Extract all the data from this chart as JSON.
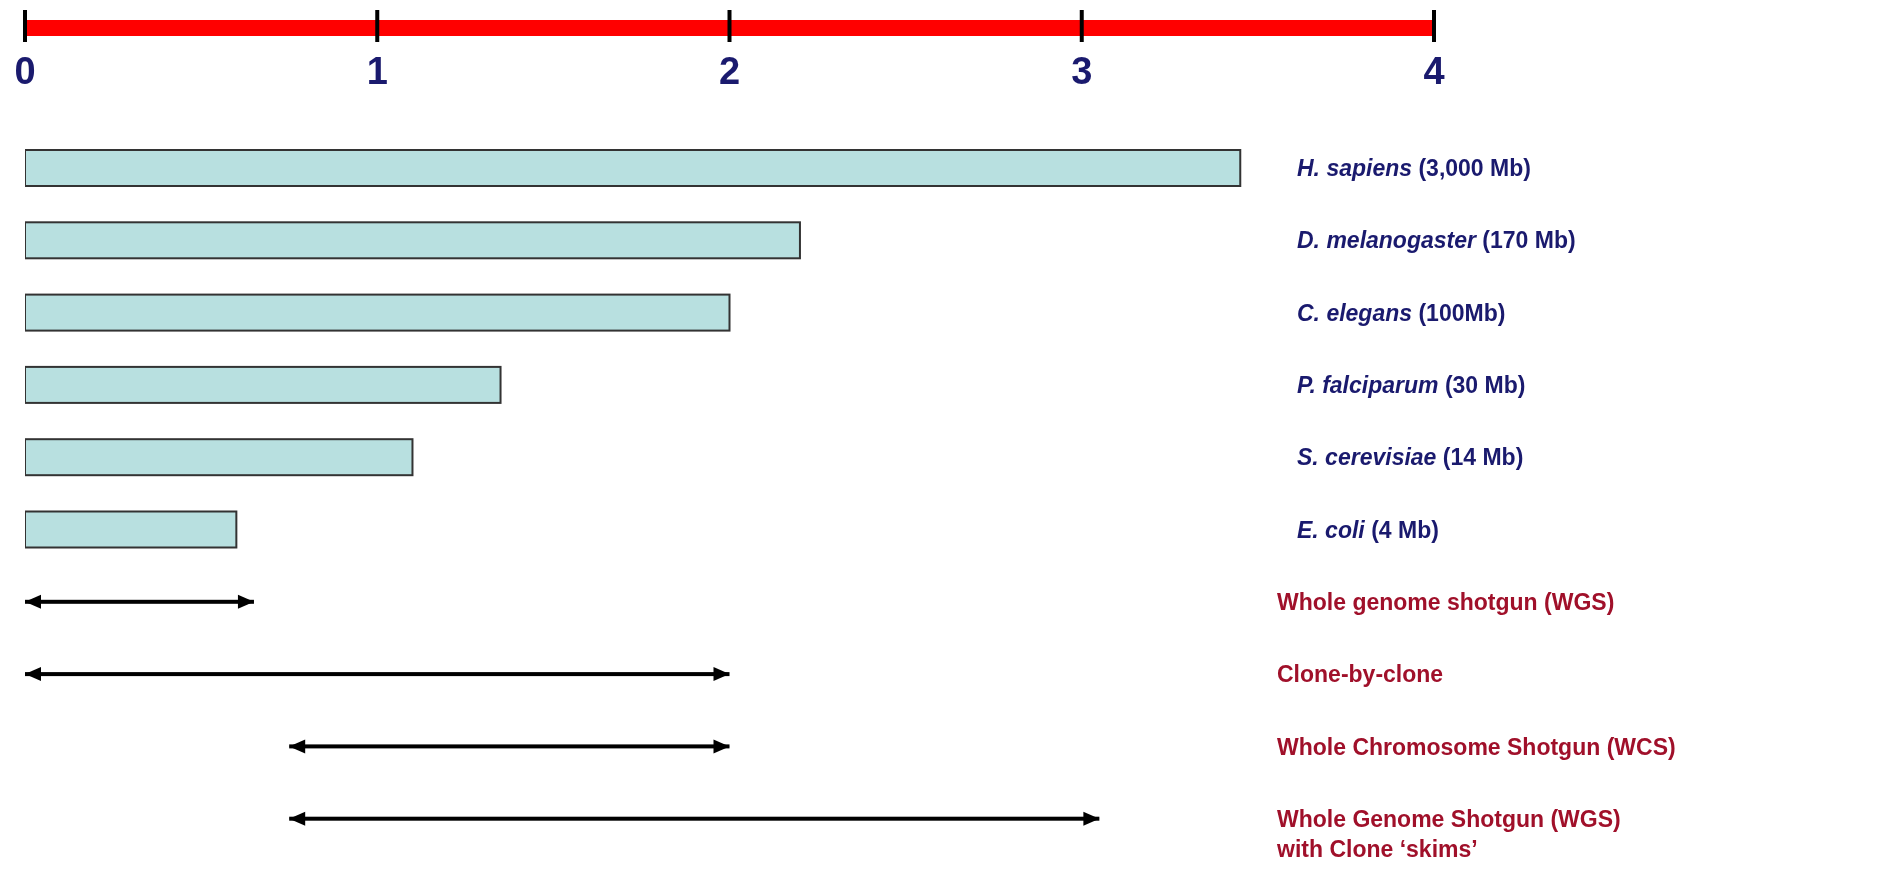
{
  "chart_data": {
    "type": "bar",
    "orientation": "horizontal",
    "categories": [
      "H. sapiens (3,000 Mb)",
      "D. melanogaster (170 Mb)",
      "C. elegans (100Mb)",
      "P. falciparum (30 Mb)",
      "S. cerevisiae (14 Mb)",
      "E. coli (4 Mb)",
      "Whole genome shotgun (WGS)",
      "Clone-by-clone",
      "Whole Chromosome Shotgun (WCS)",
      "Whole Genome Shotgun (WGS) with Clone ‘skims’"
    ],
    "series": [
      {
        "color": "#b8e0e0",
        "values": [
          3.45,
          2.2,
          2.0,
          1.35,
          1.1,
          0.6,
          null,
          null,
          null,
          null
        ]
      },
      {
        "color": "#000000",
        "base": [
          null,
          null,
          null,
          null,
          null,
          null,
          0,
          0,
          0.75,
          0.75
        ],
        "values": [
          null,
          null,
          null,
          null,
          null,
          null,
          0.65,
          2.0,
          1.25,
          2.3
        ]
      }
    ],
    "xlim": [
      0,
      4
    ],
    "xticks": [
      0,
      1,
      2,
      3,
      4
    ]
  }
}
